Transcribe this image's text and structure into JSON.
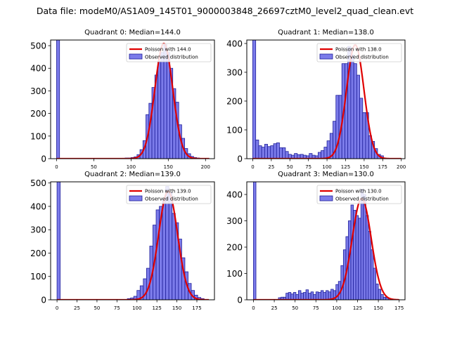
{
  "figure": {
    "suptitle": "Data file: modeM0/AS1A09_145T01_9000003848_26697cztM0_level2_quad_clean.evt"
  },
  "colors": {
    "bar_fill": "#7b7bea",
    "bar_edge": "#1f1f9a",
    "poisson_line": "#e00000"
  },
  "chart_data": [
    {
      "type": "bar",
      "title": "Quadrant 0: Median=144.0",
      "xlim": [
        -8,
        212
      ],
      "ylim": [
        0,
        525
      ],
      "xticks": [
        0,
        50,
        100,
        150,
        200
      ],
      "yticks": [
        0,
        100,
        200,
        300,
        400,
        500
      ],
      "bin_width": 4,
      "bins": [
        [
          0,
          525
        ],
        [
          88,
          2
        ],
        [
          92,
          3
        ],
        [
          96,
          3
        ],
        [
          100,
          5
        ],
        [
          104,
          8
        ],
        [
          108,
          18
        ],
        [
          112,
          40
        ],
        [
          116,
          80
        ],
        [
          120,
          195
        ],
        [
          124,
          245
        ],
        [
          128,
          315
        ],
        [
          132,
          370
        ],
        [
          136,
          430
        ],
        [
          140,
          470
        ],
        [
          144,
          505
        ],
        [
          148,
          470
        ],
        [
          152,
          400
        ],
        [
          156,
          310
        ],
        [
          160,
          250
        ],
        [
          164,
          150
        ],
        [
          168,
          90
        ],
        [
          172,
          45
        ],
        [
          176,
          22
        ],
        [
          180,
          10
        ],
        [
          184,
          5
        ],
        [
          188,
          3
        ]
      ],
      "poisson_mean": 144.0,
      "poisson_peak": 510,
      "poisson_range": [
        0,
        205
      ],
      "legend": [
        "Poisson with 144.0",
        "Observed distribution"
      ]
    },
    {
      "type": "bar",
      "title": "Quadrant 1: Median=138.0",
      "xlim": [
        -8,
        205
      ],
      "ylim": [
        0,
        412
      ],
      "xticks": [
        0,
        25,
        50,
        75,
        100,
        125,
        150,
        175,
        200
      ],
      "yticks": [
        0,
        100,
        200,
        300,
        400
      ],
      "bin_width": 4,
      "bins": [
        [
          0,
          412
        ],
        [
          4,
          65
        ],
        [
          8,
          45
        ],
        [
          12,
          40
        ],
        [
          16,
          50
        ],
        [
          20,
          42
        ],
        [
          24,
          45
        ],
        [
          28,
          52
        ],
        [
          32,
          55
        ],
        [
          36,
          38
        ],
        [
          40,
          38
        ],
        [
          44,
          25
        ],
        [
          48,
          15
        ],
        [
          52,
          12
        ],
        [
          56,
          18
        ],
        [
          60,
          14
        ],
        [
          64,
          15
        ],
        [
          68,
          12
        ],
        [
          72,
          10
        ],
        [
          76,
          18
        ],
        [
          80,
          12
        ],
        [
          84,
          10
        ],
        [
          88,
          22
        ],
        [
          92,
          28
        ],
        [
          96,
          40
        ],
        [
          100,
          62
        ],
        [
          104,
          88
        ],
        [
          108,
          130
        ],
        [
          112,
          220
        ],
        [
          116,
          220
        ],
        [
          120,
          330
        ],
        [
          124,
          330
        ],
        [
          128,
          390
        ],
        [
          132,
          360
        ],
        [
          136,
          330
        ],
        [
          140,
          290
        ],
        [
          144,
          210
        ],
        [
          148,
          160
        ],
        [
          152,
          160
        ],
        [
          156,
          80
        ],
        [
          160,
          60
        ],
        [
          164,
          35
        ],
        [
          168,
          15
        ],
        [
          172,
          10
        ]
      ],
      "poisson_mean": 138.0,
      "poisson_peak": 395,
      "poisson_range": [
        0,
        200
      ],
      "legend": [
        "Poisson with 138.0",
        "Observed distribution"
      ]
    },
    {
      "type": "bar",
      "title": "Quadrant 2: Median=139.0",
      "xlim": [
        -8,
        197
      ],
      "ylim": [
        0,
        505
      ],
      "xticks": [
        0,
        25,
        50,
        75,
        100,
        125,
        150,
        175
      ],
      "yticks": [
        0,
        100,
        200,
        300,
        400,
        500
      ],
      "bin_width": 4,
      "bins": [
        [
          0,
          505
        ],
        [
          88,
          5
        ],
        [
          92,
          8
        ],
        [
          96,
          15
        ],
        [
          100,
          40
        ],
        [
          104,
          60
        ],
        [
          108,
          90
        ],
        [
          112,
          135
        ],
        [
          116,
          230
        ],
        [
          120,
          320
        ],
        [
          124,
          385
        ],
        [
          128,
          400
        ],
        [
          132,
          430
        ],
        [
          136,
          485
        ],
        [
          140,
          460
        ],
        [
          144,
          370
        ],
        [
          148,
          330
        ],
        [
          152,
          260
        ],
        [
          156,
          180
        ],
        [
          160,
          120
        ],
        [
          164,
          70
        ],
        [
          168,
          40
        ],
        [
          172,
          20
        ],
        [
          176,
          10
        ],
        [
          180,
          5
        ]
      ],
      "poisson_mean": 139.0,
      "poisson_peak": 465,
      "poisson_range": [
        0,
        190
      ],
      "legend": [
        "Poisson with 139.0",
        "Observed distribution"
      ]
    },
    {
      "type": "bar",
      "title": "Quadrant 3: Median=130.0",
      "xlim": [
        -8,
        182
      ],
      "ylim": [
        0,
        448
      ],
      "xticks": [
        0,
        25,
        50,
        75,
        100,
        125,
        150,
        175
      ],
      "yticks": [
        0,
        100,
        200,
        300,
        400
      ],
      "bin_width": 3,
      "bins": [
        [
          0,
          448
        ],
        [
          30,
          8
        ],
        [
          33,
          10
        ],
        [
          36,
          10
        ],
        [
          39,
          25
        ],
        [
          42,
          28
        ],
        [
          45,
          22
        ],
        [
          48,
          28
        ],
        [
          51,
          20
        ],
        [
          54,
          35
        ],
        [
          57,
          25
        ],
        [
          60,
          28
        ],
        [
          63,
          38
        ],
        [
          66,
          25
        ],
        [
          69,
          30
        ],
        [
          72,
          20
        ],
        [
          75,
          30
        ],
        [
          78,
          28
        ],
        [
          81,
          35
        ],
        [
          84,
          28
        ],
        [
          87,
          35
        ],
        [
          90,
          30
        ],
        [
          93,
          40
        ],
        [
          96,
          35
        ],
        [
          99,
          58
        ],
        [
          102,
          70
        ],
        [
          105,
          130
        ],
        [
          108,
          190
        ],
        [
          111,
          240
        ],
        [
          114,
          300
        ],
        [
          117,
          360
        ],
        [
          120,
          340
        ],
        [
          123,
          320
        ],
        [
          126,
          310
        ],
        [
          129,
          420
        ],
        [
          132,
          400
        ],
        [
          135,
          320
        ],
        [
          138,
          260
        ],
        [
          141,
          190
        ],
        [
          144,
          120
        ],
        [
          147,
          60
        ],
        [
          150,
          40
        ],
        [
          153,
          20
        ],
        [
          156,
          10
        ],
        [
          159,
          8
        ],
        [
          162,
          5
        ]
      ],
      "poisson_mean": 130.0,
      "poisson_peak": 385,
      "poisson_range": [
        0,
        175
      ],
      "legend": [
        "Poisson with 130.0",
        "Observed distribution"
      ]
    }
  ]
}
